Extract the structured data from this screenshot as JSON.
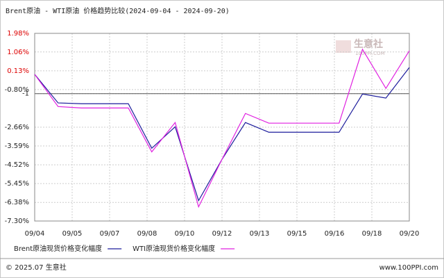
{
  "chart_data": {
    "type": "line",
    "title": "Brent原油 - WTI原油 价格趋势比较(2024-09-04 - 2024-09-20)",
    "watermark": "生意社",
    "watermark_sub": "100PPI.COM",
    "categories": [
      null,
      null,
      null,
      null,
      null,
      null,
      null,
      null,
      null,
      null,
      null,
      null,
      null,
      null,
      null,
      null,
      null
    ],
    "xlim": [
      0,
      16
    ],
    "xticks": [
      {
        "value": 0,
        "label": "09/04"
      },
      {
        "value": 1.6,
        "label": "09/05"
      },
      {
        "value": 3.2,
        "label": "09/07"
      },
      {
        "value": 4.8,
        "label": "09/08"
      },
      {
        "value": 6.4,
        "label": "09/10"
      },
      {
        "value": 8,
        "label": "09/12"
      },
      {
        "value": 9.6,
        "label": "09/13"
      },
      {
        "value": 11.2,
        "label": "09/15"
      },
      {
        "value": 12.8,
        "label": "09/16"
      },
      {
        "value": 14.4,
        "label": "09/18"
      },
      {
        "value": 16,
        "label": "09/20"
      }
    ],
    "ylim": [
      -7.3,
      1.98
    ],
    "yticks": [
      {
        "value": 1.98,
        "label": "1.98%"
      },
      {
        "value": 1.06,
        "label": "1.06%"
      },
      {
        "value": 0.13,
        "label": "0.13%"
      },
      {
        "value": -0.8,
        "label": "-0.80%"
      },
      -1,
      {
        "value": -2.66,
        "label": "-2.66%"
      },
      {
        "value": -3.59,
        "label": "-3.59%"
      },
      {
        "value": -4.52,
        "label": "-4.52%"
      },
      {
        "value": -5.45,
        "label": "-5.45%"
      },
      {
        "value": -6.38,
        "label": "-6.38%"
      },
      {
        "value": -7.3,
        "label": "-7.30%"
      }
    ],
    "reference_line": -1,
    "grid": true,
    "series": [
      {
        "name": "Brent原油现货价格变化幅度",
        "color": "#1c1c9c",
        "values": [
          -0.05,
          -1.46,
          -1.5,
          -1.5,
          -1.5,
          -3.7,
          -2.64,
          -6.29,
          -4.25,
          -2.43,
          -2.91,
          -2.91,
          -2.91,
          -2.91,
          -1.02,
          -1.22,
          0.29
        ]
      },
      {
        "name": "WTI原油现货价格变化幅度",
        "color": "#e020e0",
        "values": [
          -0.05,
          -1.64,
          -1.71,
          -1.71,
          -1.71,
          -3.88,
          -2.43,
          -6.6,
          -4.25,
          -1.98,
          -2.46,
          -2.46,
          -2.46,
          -2.46,
          1.19,
          -0.74,
          1.12
        ]
      }
    ],
    "footer_left": "© 2025.07 生意社",
    "footer_right": "www.100PPI.com"
  }
}
